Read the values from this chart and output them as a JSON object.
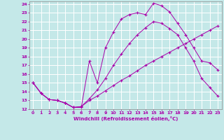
{
  "xlabel": "Windchill (Refroidissement éolien,°C)",
  "xlim": [
    -0.5,
    23.5
  ],
  "ylim": [
    12,
    24.3
  ],
  "xticks": [
    0,
    1,
    2,
    3,
    4,
    5,
    6,
    7,
    8,
    9,
    10,
    11,
    12,
    13,
    14,
    15,
    16,
    17,
    18,
    19,
    20,
    21,
    22,
    23
  ],
  "yticks": [
    12,
    13,
    14,
    15,
    16,
    17,
    18,
    19,
    20,
    21,
    22,
    23,
    24
  ],
  "bg_color": "#c4e8e8",
  "line_color": "#aa00aa",
  "grid_color": "#ffffff",
  "line1_x": [
    0,
    1,
    2,
    3,
    4,
    5,
    6,
    7,
    8,
    9,
    10,
    11,
    12,
    13,
    14,
    15,
    16,
    17,
    18,
    19,
    20,
    21,
    22,
    23
  ],
  "line1_y": [
    15.0,
    13.8,
    13.1,
    13.0,
    12.7,
    12.2,
    12.2,
    17.5,
    15.0,
    19.0,
    20.8,
    22.3,
    22.8,
    23.0,
    22.8,
    24.1,
    23.8,
    23.1,
    21.8,
    20.5,
    19.0,
    17.5,
    17.3,
    16.5
  ],
  "line2_x": [
    0,
    1,
    2,
    3,
    4,
    5,
    6,
    7,
    8,
    9,
    10,
    11,
    12,
    13,
    14,
    15,
    16,
    17,
    18,
    19,
    20,
    21,
    22,
    23
  ],
  "line2_y": [
    15.0,
    13.8,
    13.1,
    13.0,
    12.7,
    12.2,
    12.3,
    13.0,
    13.5,
    14.1,
    14.7,
    15.3,
    15.8,
    16.4,
    17.0,
    17.5,
    18.0,
    18.5,
    19.0,
    19.5,
    20.0,
    20.5,
    21.0,
    21.5
  ],
  "line3_x": [
    0,
    1,
    2,
    3,
    4,
    5,
    6,
    7,
    8,
    9,
    10,
    11,
    12,
    13,
    14,
    15,
    16,
    17,
    18,
    19,
    20,
    21,
    22,
    23
  ],
  "line3_y": [
    15.0,
    13.8,
    13.1,
    13.0,
    12.7,
    12.2,
    12.3,
    13.2,
    14.2,
    15.5,
    17.0,
    18.3,
    19.5,
    20.5,
    21.3,
    22.0,
    21.8,
    21.2,
    20.5,
    19.0,
    17.5,
    15.5,
    14.5,
    13.5
  ]
}
